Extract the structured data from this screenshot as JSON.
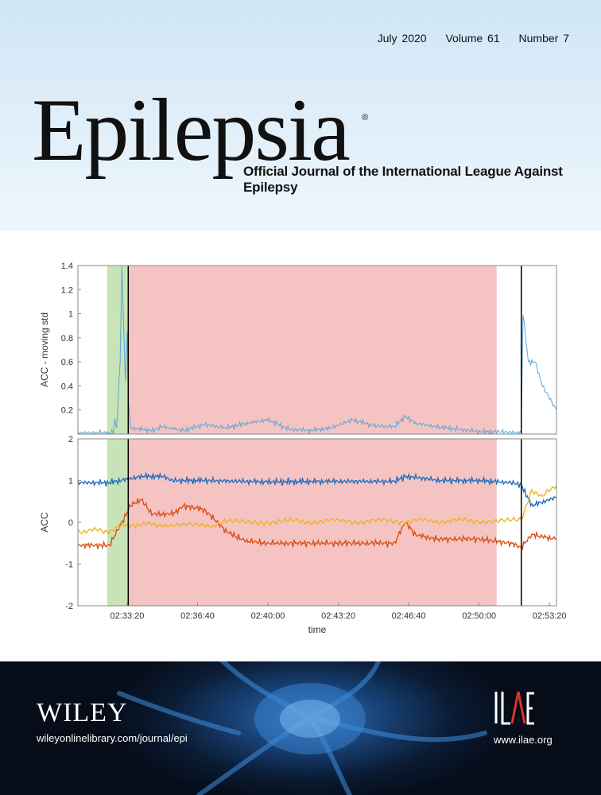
{
  "issue": {
    "date": "July 2020",
    "volume": "Volume 61",
    "number": "Number 7"
  },
  "journal": {
    "title": "Epilepsia",
    "registered": "®",
    "subtitle": "Official Journal of the International League Against Epilepsy"
  },
  "publisher": {
    "name": "WILEY",
    "url": "wileyonlinelibrary.com/journal/epi"
  },
  "society": {
    "logo_text": "ILAE",
    "url": "www.ilae.org"
  },
  "colors": {
    "header_bg": "#dcecf8",
    "footer_bg": "#0a1b33",
    "shade_green": "#c9e3b8",
    "shade_red": "#f6c3c3",
    "series_blue": "#1f6fc0",
    "series_orange": "#d95319",
    "series_yellow": "#edb120",
    "series_std": "#5aa7d8"
  },
  "chart_data": [
    {
      "type": "line",
      "ylabel": "ACC - moving std",
      "ylim": [
        0,
        1.4
      ],
      "yticks": [
        "0.2",
        "0.4",
        "0.6",
        "0.8",
        "1",
        "1.2",
        "1.4"
      ],
      "grid": false,
      "shaded_regions": [
        {
          "color": "green",
          "x": [
            "02:32:23",
            "02:33:23"
          ]
        },
        {
          "color": "red",
          "x": [
            "02:33:23",
            "02:50:50"
          ]
        }
      ],
      "vertical_lines": [
        "02:33:23",
        "02:52:00"
      ],
      "series": [
        {
          "values_note": "",
          "points": [
            [
              "02:31:00",
              0.01
            ],
            [
              "02:32:40",
              0.01
            ],
            [
              "02:32:45",
              0.12
            ],
            [
              "02:32:50",
              0.05
            ],
            [
              "02:33:00",
              0.6
            ],
            [
              "02:33:05",
              1.4
            ],
            [
              "02:33:10",
              0.9
            ],
            [
              "02:33:15",
              0.45
            ],
            [
              "02:33:20",
              0.85
            ],
            [
              "02:33:23",
              0.3
            ],
            [
              "02:33:30",
              0.05
            ],
            [
              "02:34:30",
              0.03
            ],
            [
              "02:35:00",
              0.06
            ],
            [
              "02:36:00",
              0.03
            ],
            [
              "02:37:00",
              0.08
            ],
            [
              "02:38:00",
              0.05
            ],
            [
              "02:39:00",
              0.09
            ],
            [
              "02:40:00",
              0.12
            ],
            [
              "02:41:00",
              0.04
            ],
            [
              "02:42:00",
              0.03
            ],
            [
              "02:43:00",
              0.05
            ],
            [
              "02:44:00",
              0.12
            ],
            [
              "02:45:00",
              0.07
            ],
            [
              "02:46:00",
              0.06
            ],
            [
              "02:46:30",
              0.15
            ],
            [
              "02:47:00",
              0.09
            ],
            [
              "02:48:00",
              0.06
            ],
            [
              "02:49:00",
              0.04
            ],
            [
              "02:50:00",
              0.02
            ],
            [
              "02:51:00",
              0.02
            ],
            [
              "02:52:00",
              0.01
            ],
            [
              "02:52:05",
              1.0
            ],
            [
              "02:52:20",
              0.6
            ],
            [
              "02:52:40",
              0.6
            ],
            [
              "02:53:00",
              0.4
            ],
            [
              "02:53:40",
              0.2
            ]
          ]
        }
      ]
    },
    {
      "type": "line",
      "ylabel": "ACC",
      "xlabel": "time",
      "ylim": [
        -2,
        2
      ],
      "yticks": [
        "-2",
        "-1",
        "0",
        "1",
        "2"
      ],
      "xticks": [
        "02:33:20",
        "02:36:40",
        "02:40:00",
        "02:43:20",
        "02:46:40",
        "02:50:00",
        "02:53:20"
      ],
      "grid": false,
      "shaded_regions": [
        {
          "color": "green",
          "x": [
            "02:32:23",
            "02:33:23"
          ]
        },
        {
          "color": "red",
          "x": [
            "02:33:23",
            "02:50:50"
          ]
        }
      ],
      "vertical_lines": [
        "02:33:23",
        "02:52:00"
      ],
      "series": [
        {
          "color": "blue",
          "points": [
            [
              "02:31:00",
              0.95
            ],
            [
              "02:32:30",
              0.95
            ],
            [
              "02:33:30",
              1.05
            ],
            [
              "02:34:00",
              1.1
            ],
            [
              "02:35:00",
              1.1
            ],
            [
              "02:35:30",
              1.0
            ],
            [
              "02:37:00",
              1.0
            ],
            [
              "02:40:00",
              0.97
            ],
            [
              "02:43:00",
              0.98
            ],
            [
              "02:46:00",
              0.98
            ],
            [
              "02:46:30",
              1.1
            ],
            [
              "02:47:30",
              1.05
            ],
            [
              "02:48:00",
              1.0
            ],
            [
              "02:50:00",
              1.0
            ],
            [
              "02:51:30",
              0.95
            ],
            [
              "02:52:00",
              0.9
            ],
            [
              "02:52:30",
              0.4
            ],
            [
              "02:53:40",
              0.6
            ]
          ]
        },
        {
          "color": "orange",
          "points": [
            [
              "02:31:00",
              -0.55
            ],
            [
              "02:32:30",
              -0.55
            ],
            [
              "02:33:30",
              0.4
            ],
            [
              "02:34:00",
              0.55
            ],
            [
              "02:34:30",
              0.2
            ],
            [
              "02:35:30",
              0.2
            ],
            [
              "02:36:00",
              0.4
            ],
            [
              "02:37:00",
              0.3
            ],
            [
              "02:38:00",
              -0.2
            ],
            [
              "02:38:30",
              -0.35
            ],
            [
              "02:39:00",
              -0.45
            ],
            [
              "02:40:00",
              -0.5
            ],
            [
              "02:43:00",
              -0.5
            ],
            [
              "02:46:00",
              -0.5
            ],
            [
              "02:46:30",
              0.0
            ],
            [
              "02:47:00",
              -0.3
            ],
            [
              "02:48:00",
              -0.4
            ],
            [
              "02:50:00",
              -0.4
            ],
            [
              "02:51:30",
              -0.5
            ],
            [
              "02:52:00",
              -0.6
            ],
            [
              "02:52:30",
              -0.3
            ],
            [
              "02:53:40",
              -0.4
            ]
          ]
        },
        {
          "color": "yellow",
          "points": [
            [
              "02:31:00",
              -0.2
            ],
            [
              "02:32:30",
              -0.2
            ],
            [
              "02:33:30",
              -0.05
            ],
            [
              "02:35:00",
              -0.05
            ],
            [
              "02:37:00",
              -0.1
            ],
            [
              "02:38:00",
              0.0
            ],
            [
              "02:40:00",
              0.02
            ],
            [
              "02:43:00",
              0.03
            ],
            [
              "02:46:00",
              0.03
            ],
            [
              "02:50:00",
              0.04
            ],
            [
              "02:52:00",
              0.03
            ],
            [
              "02:52:30",
              0.8
            ],
            [
              "02:53:00",
              0.6
            ],
            [
              "02:53:40",
              0.9
            ]
          ]
        }
      ]
    }
  ]
}
